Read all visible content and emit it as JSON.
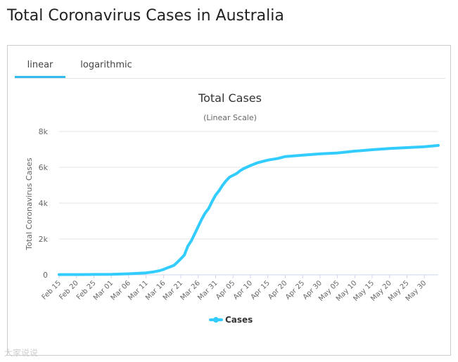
{
  "page": {
    "title": "Total Coronavirus Cases in Australia"
  },
  "tabs": [
    {
      "label": "linear",
      "active": true
    },
    {
      "label": "logarithmic",
      "active": false
    }
  ],
  "watermark": "大家说说",
  "colors": {
    "accent": "#33bbee",
    "series": "#33ccff",
    "grid": "#e6e6e6",
    "axis": "#ccd6eb"
  },
  "chart_data": {
    "type": "line",
    "title": "Total Cases",
    "subtitle": "(Linear Scale)",
    "ylabel": "Total Coronavirus Cases",
    "xlabel": "",
    "ylim": [
      0,
      8000
    ],
    "yticks": [
      0,
      2000,
      4000,
      6000,
      8000
    ],
    "ytick_labels": [
      "0",
      "2k",
      "4k",
      "6k",
      "8k"
    ],
    "xtick_labels": [
      "Feb 15",
      "Feb 20",
      "Feb 25",
      "Mar 01",
      "Mar 06",
      "Mar 11",
      "Mar 16",
      "Mar 21",
      "Mar 26",
      "Mar 31",
      "Apr 05",
      "Apr 10",
      "Apr 15",
      "Apr 20",
      "Apr 25",
      "Apr 30",
      "May 05",
      "May 10",
      "May 15",
      "May 20",
      "May 25",
      "May 30"
    ],
    "grid": true,
    "legend": "bottom-center",
    "series": [
      {
        "name": "Cases",
        "x": [
          "Feb 15",
          "Feb 20",
          "Feb 25",
          "Mar 01",
          "Mar 06",
          "Mar 09",
          "Mar 11",
          "Mar 13",
          "Mar 15",
          "Mar 16",
          "Mar 17",
          "Mar 18",
          "Mar 19",
          "Mar 20",
          "Mar 21",
          "Mar 22",
          "Mar 23",
          "Mar 24",
          "Mar 25",
          "Mar 26",
          "Mar 27",
          "Mar 28",
          "Mar 29",
          "Mar 30",
          "Mar 31",
          "Apr 01",
          "Apr 02",
          "Apr 03",
          "Apr 04",
          "Apr 05",
          "Apr 06",
          "Apr 07",
          "Apr 08",
          "Apr 10",
          "Apr 12",
          "Apr 15",
          "Apr 18",
          "Apr 20",
          "Apr 25",
          "Apr 30",
          "May 05",
          "May 10",
          "May 15",
          "May 20",
          "May 25",
          "May 30",
          "Jun 03"
        ],
        "values": [
          15,
          15,
          22,
          26,
          60,
          90,
          110,
          160,
          240,
          300,
          380,
          450,
          530,
          700,
          900,
          1100,
          1600,
          1900,
          2300,
          2700,
          3100,
          3450,
          3700,
          4100,
          4450,
          4700,
          5000,
          5250,
          5450,
          5550,
          5650,
          5800,
          5920,
          6100,
          6250,
          6400,
          6500,
          6600,
          6680,
          6750,
          6800,
          6900,
          6980,
          7050,
          7100,
          7150,
          7220
        ]
      }
    ]
  }
}
